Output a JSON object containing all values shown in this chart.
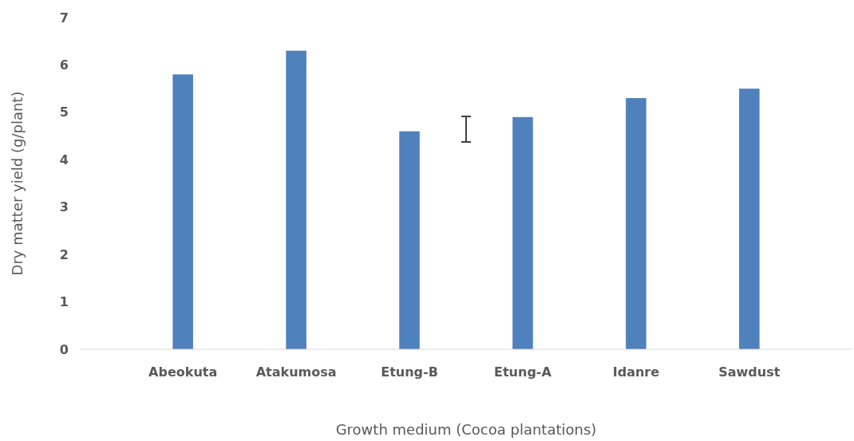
{
  "chart_data": {
    "type": "bar",
    "xlabel": "Growth medium (Cocoa plantations)",
    "ylabel": "Dry matter yield (g/plant)",
    "categories": [
      "Abeokuta",
      "Atakumosa",
      "Etung-B",
      "Etung-A",
      "Idanre",
      "Sawdust"
    ],
    "values": [
      5.8,
      6.3,
      4.6,
      4.9,
      5.3,
      5.5
    ],
    "color": "#4f81bd",
    "ylim": [
      0,
      7
    ],
    "yticks": [
      0,
      1,
      2,
      3,
      4,
      5,
      6,
      7
    ],
    "grid": false
  }
}
